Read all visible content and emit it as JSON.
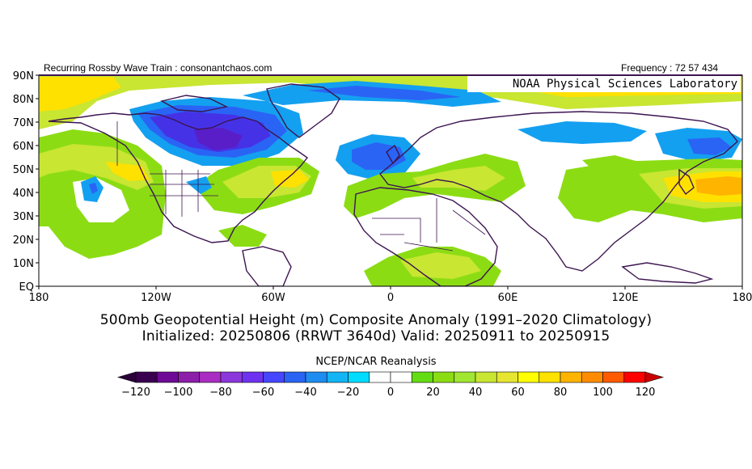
{
  "header": {
    "left_text": "Recurring Rossby Wave Train : consonantchaos.com",
    "right_text": "Frequency : 72 57 434"
  },
  "lab_label": "NOAA Physical Sciences Laboratory",
  "title_lines": [
    "500mb Geopotential Height (m) Composite Anomaly (1991–2020 Climatology)",
    "Initialized: 20250806 (RRWT 3640d) Valid: 20250911 to 20250915"
  ],
  "colorbar": {
    "title": "NCEP/NCAR Reanalysis",
    "tick_labels": [
      "−120",
      "−100",
      "−80",
      "−60",
      "−40",
      "−20",
      "0",
      "20",
      "40",
      "60",
      "80",
      "100",
      "120"
    ],
    "colors": [
      "#3a0050",
      "#6e0a96",
      "#8c1eaa",
      "#aa2dc3",
      "#8c37dc",
      "#6e32f0",
      "#4646ff",
      "#2a64f5",
      "#1e8cf0",
      "#14b4f5",
      "#00dcff",
      "#ffffff",
      "#ffffff",
      "#64dc14",
      "#8cdc14",
      "#a0e632",
      "#c8e632",
      "#e6e632",
      "#ffff00",
      "#ffe100",
      "#ffb400",
      "#ff8c00",
      "#ff5a00",
      "#ff0000"
    ],
    "under_color": "#2a0038",
    "over_color": "#c80000"
  },
  "map": {
    "lat_labels": [
      "90N",
      "80N",
      "70N",
      "60N",
      "50N",
      "40N",
      "30N",
      "20N",
      "10N",
      "EQ"
    ],
    "lon_labels": [
      "180",
      "120W",
      "60W",
      "0",
      "60E",
      "120E",
      "180"
    ],
    "colors": {
      "coast": "#3c1450",
      "neg_light": "#14a0f0",
      "neg_mid": "#2a64f5",
      "neg_dark": "#4632e6",
      "neg_darkest": "#5a1ec8",
      "pos_light": "#8cdc14",
      "pos_mid": "#c8e632",
      "pos_yellow": "#ffe100",
      "pos_orange": "#ffb400"
    }
  }
}
